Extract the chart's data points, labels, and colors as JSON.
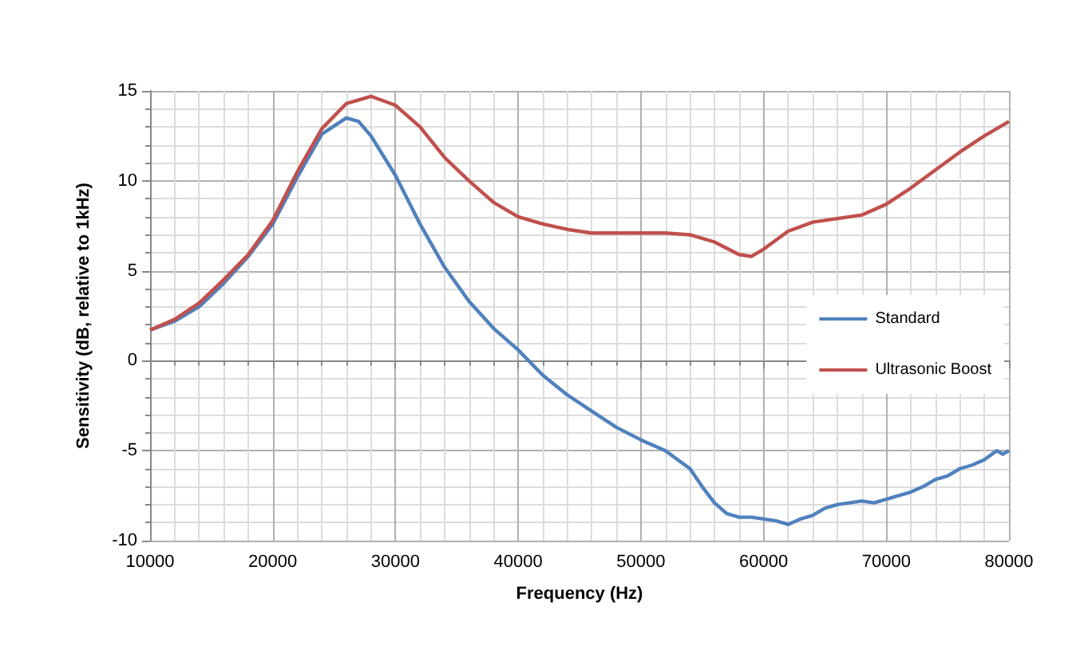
{
  "chart_data": {
    "type": "line",
    "xlabel": "Frequency (Hz)",
    "ylabel": "Sensitivity (dB, relative to 1kHz)",
    "xlim": [
      10000,
      80000
    ],
    "xticks": [
      10000,
      20000,
      30000,
      40000,
      50000,
      60000,
      70000,
      80000
    ],
    "ylim": [
      -10,
      15
    ],
    "yticks": [
      -10,
      -5,
      0,
      5,
      10,
      15
    ],
    "grid": true,
    "legend": "right",
    "marker": "none",
    "line_style": "solid",
    "series": [
      {
        "name": "Standard",
        "color": "#4f81bd",
        "x": [
          10000,
          12000,
          14000,
          16000,
          18000,
          20000,
          22000,
          24000,
          26000,
          27000,
          28000,
          30000,
          32000,
          34000,
          36000,
          38000,
          40000,
          42000,
          44000,
          46000,
          48000,
          50000,
          52000,
          54000,
          55000,
          56000,
          57000,
          58000,
          59000,
          60000,
          61000,
          62000,
          63000,
          64000,
          65000,
          66000,
          67000,
          68000,
          69000,
          70000,
          71000,
          72000,
          73000,
          74000,
          75000,
          76000,
          77000,
          78000,
          79000,
          79500,
          80000
        ],
        "values": [
          1.7,
          2.2,
          3.0,
          4.3,
          5.8,
          7.6,
          10.2,
          12.6,
          13.5,
          13.3,
          12.5,
          10.3,
          7.6,
          5.2,
          3.3,
          1.8,
          0.6,
          -0.8,
          -1.9,
          -2.8,
          -3.7,
          -4.4,
          -5.0,
          -6.0,
          -7.0,
          -7.9,
          -8.5,
          -8.7,
          -8.7,
          -8.8,
          -8.9,
          -9.1,
          -8.8,
          -8.6,
          -8.2,
          -8.0,
          -7.9,
          -7.8,
          -7.9,
          -7.7,
          -7.5,
          -7.3,
          -7.0,
          -6.6,
          -6.4,
          -6.0,
          -5.8,
          -5.5,
          -5.0,
          -5.2,
          -5.0
        ]
      },
      {
        "name": "Ultrasonic Boost",
        "color": "#c0504d",
        "x": [
          10000,
          12000,
          14000,
          16000,
          18000,
          20000,
          22000,
          24000,
          26000,
          28000,
          30000,
          32000,
          34000,
          36000,
          38000,
          40000,
          42000,
          44000,
          46000,
          48000,
          50000,
          52000,
          54000,
          56000,
          58000,
          59000,
          60000,
          62000,
          64000,
          66000,
          68000,
          70000,
          72000,
          74000,
          76000,
          78000,
          80000
        ],
        "values": [
          1.7,
          2.3,
          3.2,
          4.5,
          5.9,
          7.8,
          10.5,
          12.9,
          14.3,
          14.7,
          14.2,
          13.0,
          11.3,
          10.0,
          8.8,
          8.0,
          7.6,
          7.3,
          7.1,
          7.1,
          7.1,
          7.1,
          7.0,
          6.6,
          5.9,
          5.8,
          6.2,
          7.2,
          7.7,
          7.9,
          8.1,
          8.7,
          9.6,
          10.6,
          11.6,
          12.5,
          13.3
        ]
      }
    ]
  }
}
